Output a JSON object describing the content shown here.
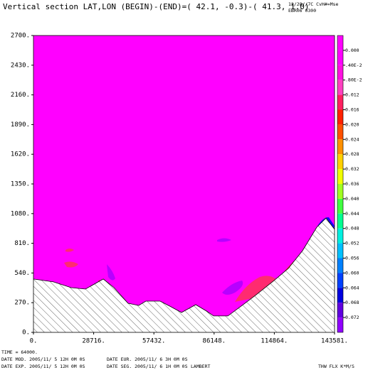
{
  "chart_data": {
    "type": "contour",
    "title": "Vertical section LAT,LON (BEGIN)-(END)=( 42.1, -0.3)-( 41.3, 1.0)",
    "corner_lines": [
      "12/28//7C    CvH#=Mse",
      "EBR06 0300"
    ],
    "xlim": [
      0,
      143581
    ],
    "ylim": [
      0,
      2700
    ],
    "xticks": [
      {
        "value": 0,
        "label": "0."
      },
      {
        "value": 28716,
        "label": "28716."
      },
      {
        "value": 57432,
        "label": "57432."
      },
      {
        "value": 86148,
        "label": "86148."
      },
      {
        "value": 114864,
        "label": "114864."
      },
      {
        "value": 143581,
        "label": "143581."
      }
    ],
    "yticks": [
      {
        "value": 0,
        "label": "0."
      },
      {
        "value": 270,
        "label": "270."
      },
      {
        "value": 540,
        "label": "540."
      },
      {
        "value": 810,
        "label": "810."
      },
      {
        "value": 1080,
        "label": "1080."
      },
      {
        "value": 1350,
        "label": "1350."
      },
      {
        "value": 1620,
        "label": "1620."
      },
      {
        "value": 1890,
        "label": "1890."
      },
      {
        "value": 2160,
        "label": "2160."
      },
      {
        "value": 2430,
        "label": "2430."
      },
      {
        "value": 2700,
        "label": "2700."
      }
    ],
    "background_color": "#ff00ff",
    "terrain": {
      "x": [
        0,
        9500,
        18000,
        24800,
        33300,
        38400,
        45100,
        50200,
        53600,
        60400,
        65500,
        70600,
        77400,
        82500,
        85900,
        92700,
        99500,
        106200,
        114700,
        121500,
        128300,
        135100,
        139500,
        143581
      ],
      "values": [
        485,
        459,
        407,
        394,
        485,
        407,
        265,
        245,
        284,
        284,
        233,
        181,
        252,
        194,
        149,
        149,
        245,
        342,
        471,
        581,
        743,
        956,
        1040,
        937
      ]
    },
    "clim": [
      -0.004,
      0.076
    ],
    "cticks": [
      {
        "value": 0,
        "label": "0.000"
      },
      {
        "value": 0.004,
        "label": ".40E-2"
      },
      {
        "value": 0.008,
        "label": ".80E-2"
      },
      0.012,
      0.016,
      {
        "value": 0.02,
        "label": "0.020"
      },
      0.024,
      0.028,
      0.032,
      0.036,
      {
        "value": 0.04,
        "label": "0.040"
      },
      0.044,
      0.048,
      0.052,
      0.056,
      {
        "value": 0.06,
        "label": "0.060"
      },
      0.064,
      0.068,
      0.072
    ],
    "colors": [
      "#ff00ff",
      "#ff00ff",
      "#ff10e0",
      "#ff40c0",
      "#ff2060",
      "#ff2000",
      "#ff5000",
      "#ff9000",
      "#ffd000",
      "#f0ff00",
      "#a0ff20",
      "#40ff40",
      "#00ff90",
      "#00f0e0",
      "#00c0ff",
      "#0080ff",
      "#0040ff",
      "#0000e0",
      "#6000e0",
      "#9000ff"
    ],
    "footer": [
      "TIME =   64000.",
      "DATE MOD. 2005/11/ 5  12H 0M 0S",
      "DATE EUR. 2005/11/ 6   3H 0M 0S",
      "DATE EXP. 2005/11/ 5  12H 0M 0S",
      "DATE SEG. 2005/11/ 6   1H 0M 0S",
      "LAMBERT",
      "THW FLX K*M/S"
    ]
  }
}
